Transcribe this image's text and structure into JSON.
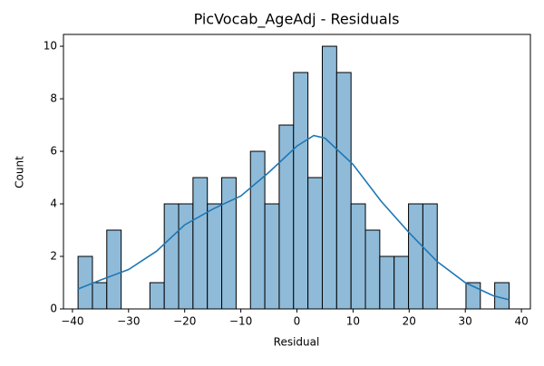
{
  "chart_data": {
    "type": "histogram",
    "title": "PicVocab_AgeAdj - Residuals",
    "xlabel": "Residual",
    "ylabel": "Count",
    "bins": [
      -39.0,
      -36.44,
      -33.88,
      -31.32,
      -28.76,
      -26.2,
      -23.64,
      -21.08,
      -18.52,
      -15.96,
      -13.4,
      -10.84,
      -8.28,
      -5.72,
      -3.16,
      -0.6,
      1.96,
      4.52,
      7.08,
      9.64,
      12.2,
      14.76,
      17.32,
      19.88,
      22.44,
      25.0,
      27.56,
      30.12,
      32.68,
      35.24,
      37.8
    ],
    "counts": [
      2,
      1,
      3,
      0,
      0,
      1,
      4,
      4,
      5,
      4,
      5,
      0,
      6,
      4,
      7,
      9,
      5,
      10,
      9,
      4,
      3,
      2,
      2,
      4,
      4,
      0,
      0,
      1,
      0,
      1
    ],
    "color": "#8fbbd9",
    "kde": {
      "x": [
        -39,
        -35,
        -30,
        -25,
        -20,
        -15,
        -10,
        -5,
        0,
        3,
        5,
        10,
        15,
        20,
        25,
        30,
        35,
        37.8
      ],
      "values": [
        0.76,
        1.1,
        1.5,
        2.2,
        3.2,
        3.8,
        4.3,
        5.2,
        6.2,
        6.6,
        6.5,
        5.5,
        4.1,
        2.9,
        1.8,
        1.0,
        0.5,
        0.35
      ],
      "color": "#1f77b4"
    },
    "xlim": [
      -41.6,
      41.6
    ],
    "ylim": [
      0,
      10.45
    ],
    "xticks": [
      {
        "value": -40,
        "label": "−40"
      },
      {
        "value": -30,
        "label": "−30"
      },
      {
        "value": -20,
        "label": "−20"
      },
      {
        "value": -10,
        "label": "−10"
      },
      0,
      10,
      20,
      30,
      40
    ],
    "yticks": [
      0,
      2,
      4,
      6,
      8,
      10
    ]
  }
}
